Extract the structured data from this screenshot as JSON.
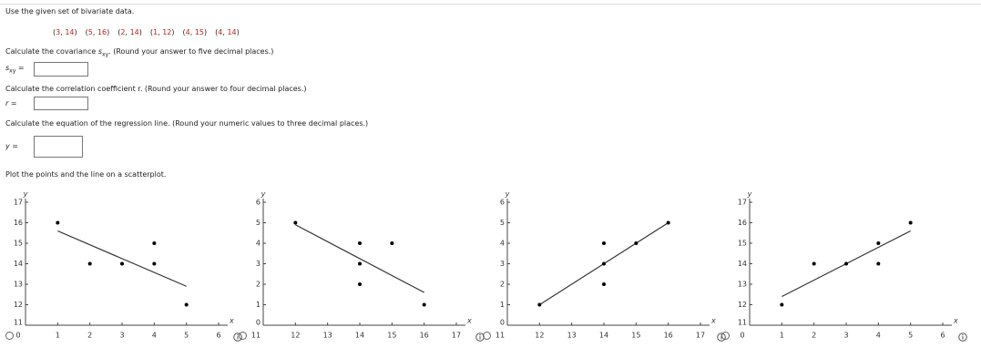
{
  "intro": "Use the given set of bivariate data.",
  "pairs": [
    [
      3,
      14
    ],
    [
      5,
      16
    ],
    [
      2,
      14
    ],
    [
      1,
      12
    ],
    [
      4,
      15
    ],
    [
      4,
      14
    ]
  ],
  "covariance": {
    "prompt_start": "Calculate the covariance",
    "symbol": "s",
    "subscript": "xy",
    "prompt_end": ". (Round your answer to five decimal places.)",
    "equals": "="
  },
  "correlation": {
    "prompt": "Calculate the correlation coefficient r. (Round your answer to four decimal places.)",
    "input_label": "r ="
  },
  "regression": {
    "prompt": "Calculate the equation of the regression line. (Round your numeric values to three decimal places.)",
    "input_label": "y ="
  },
  "plot_prompt": "Plot the points and the line on a scatterplot.",
  "chart_data": [
    {
      "type": "scatter",
      "x_label": "x",
      "y_label": "y",
      "xlim": [
        0,
        6
      ],
      "ylim": [
        11,
        17
      ],
      "xticks": [
        0,
        1,
        2,
        3,
        4,
        5,
        6
      ],
      "yticks": [
        11,
        12,
        13,
        14,
        15,
        16,
        17
      ],
      "points": {
        "x": [
          1,
          2,
          3,
          4,
          4,
          5
        ],
        "y": [
          16,
          14,
          14,
          15,
          14,
          12
        ],
        "color": "#000000"
      },
      "line": {
        "x": [
          1,
          5
        ],
        "y": [
          15.6,
          12.9
        ],
        "color": "#333333"
      }
    },
    {
      "type": "scatter",
      "x_label": "x",
      "y_label": "y",
      "xlim": [
        11,
        17
      ],
      "ylim": [
        0,
        6
      ],
      "xticks": [
        11,
        12,
        13,
        14,
        15,
        16,
        17
      ],
      "yticks": [
        0,
        1,
        2,
        3,
        4,
        5,
        6
      ],
      "points": {
        "x": [
          12,
          14,
          15,
          14,
          14,
          16
        ],
        "y": [
          5,
          4,
          4,
          3,
          2,
          1
        ],
        "color": "#000000"
      },
      "line": {
        "x": [
          12,
          16
        ],
        "y": [
          4.9,
          1.6
        ],
        "color": "#333333"
      }
    },
    {
      "type": "scatter",
      "x_label": "x",
      "y_label": "y",
      "xlim": [
        11,
        17
      ],
      "ylim": [
        0,
        6
      ],
      "xticks": [
        11,
        12,
        13,
        14,
        15,
        16,
        17
      ],
      "yticks": [
        0,
        1,
        2,
        3,
        4,
        5,
        6
      ],
      "points": {
        "x": [
          12,
          14,
          14,
          14,
          15,
          16
        ],
        "y": [
          1,
          2,
          3,
          4,
          4,
          5
        ],
        "color": "#000000"
      },
      "line": {
        "x": [
          12,
          16
        ],
        "y": [
          1,
          5
        ],
        "color": "#333333"
      }
    },
    {
      "type": "scatter",
      "x_label": "x",
      "y_label": "y",
      "xlim": [
        0,
        6
      ],
      "ylim": [
        11,
        17
      ],
      "xticks": [
        0,
        1,
        2,
        3,
        4,
        5,
        6
      ],
      "yticks": [
        11,
        12,
        13,
        14,
        15,
        16,
        17
      ],
      "points": {
        "x": [
          1,
          2,
          3,
          4,
          4,
          5
        ],
        "y": [
          12,
          14,
          14,
          15,
          14,
          16
        ],
        "color": "#000000"
      },
      "line": {
        "x": [
          1,
          5
        ],
        "y": [
          12.4,
          15.6
        ],
        "color": "#333333"
      }
    }
  ]
}
